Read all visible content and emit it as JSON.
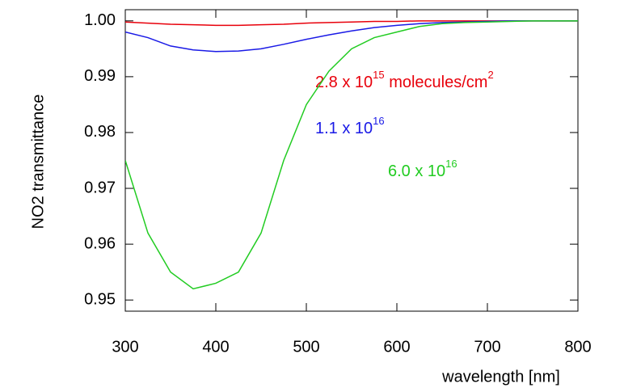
{
  "chart_data": {
    "type": "line",
    "xlabel": "wavelength [nm]",
    "ylabel": "NO2 transmittance",
    "x": [
      300,
      325,
      350,
      375,
      400,
      425,
      450,
      475,
      500,
      525,
      550,
      575,
      600,
      625,
      650,
      675,
      700,
      725,
      750,
      775,
      800
    ],
    "series": [
      {
        "name": "2.8 x 10",
        "name_sup": "15",
        "unit": " molecules/cm",
        "unit_sup": "2",
        "color": "#e8000b",
        "values": [
          0.9998,
          0.9996,
          0.9994,
          0.9993,
          0.9992,
          0.9992,
          0.9993,
          0.9994,
          0.9996,
          0.9997,
          0.9998,
          0.9999,
          0.9999,
          1.0,
          1.0,
          1.0,
          1.0,
          1.0,
          1.0,
          1.0,
          1.0
        ]
      },
      {
        "name": "1.1 x 10",
        "name_sup": "16",
        "color": "#1a1ae6",
        "values": [
          0.998,
          0.997,
          0.9955,
          0.9948,
          0.9945,
          0.9946,
          0.995,
          0.9958,
          0.9967,
          0.9975,
          0.9982,
          0.9988,
          0.9992,
          0.9995,
          0.9997,
          0.9998,
          0.9999,
          1.0,
          1.0,
          1.0,
          1.0
        ]
      },
      {
        "name": "6.0 x 10",
        "name_sup": "16",
        "color": "#22cc22",
        "values": [
          0.975,
          0.962,
          0.955,
          0.952,
          0.953,
          0.955,
          0.962,
          0.975,
          0.985,
          0.991,
          0.995,
          0.997,
          0.998,
          0.999,
          0.9995,
          0.9997,
          0.9998,
          0.9999,
          1.0,
          1.0,
          1.0
        ]
      }
    ],
    "xlim": [
      300,
      800
    ],
    "xticks": [
      300,
      400,
      500,
      600,
      700,
      800
    ],
    "ylim": [
      0.948,
      1.002
    ],
    "yticks": [
      {
        "value": 1,
        "label": "1.00"
      },
      0.99,
      0.98,
      0.97,
      0.96,
      0.95
    ]
  }
}
